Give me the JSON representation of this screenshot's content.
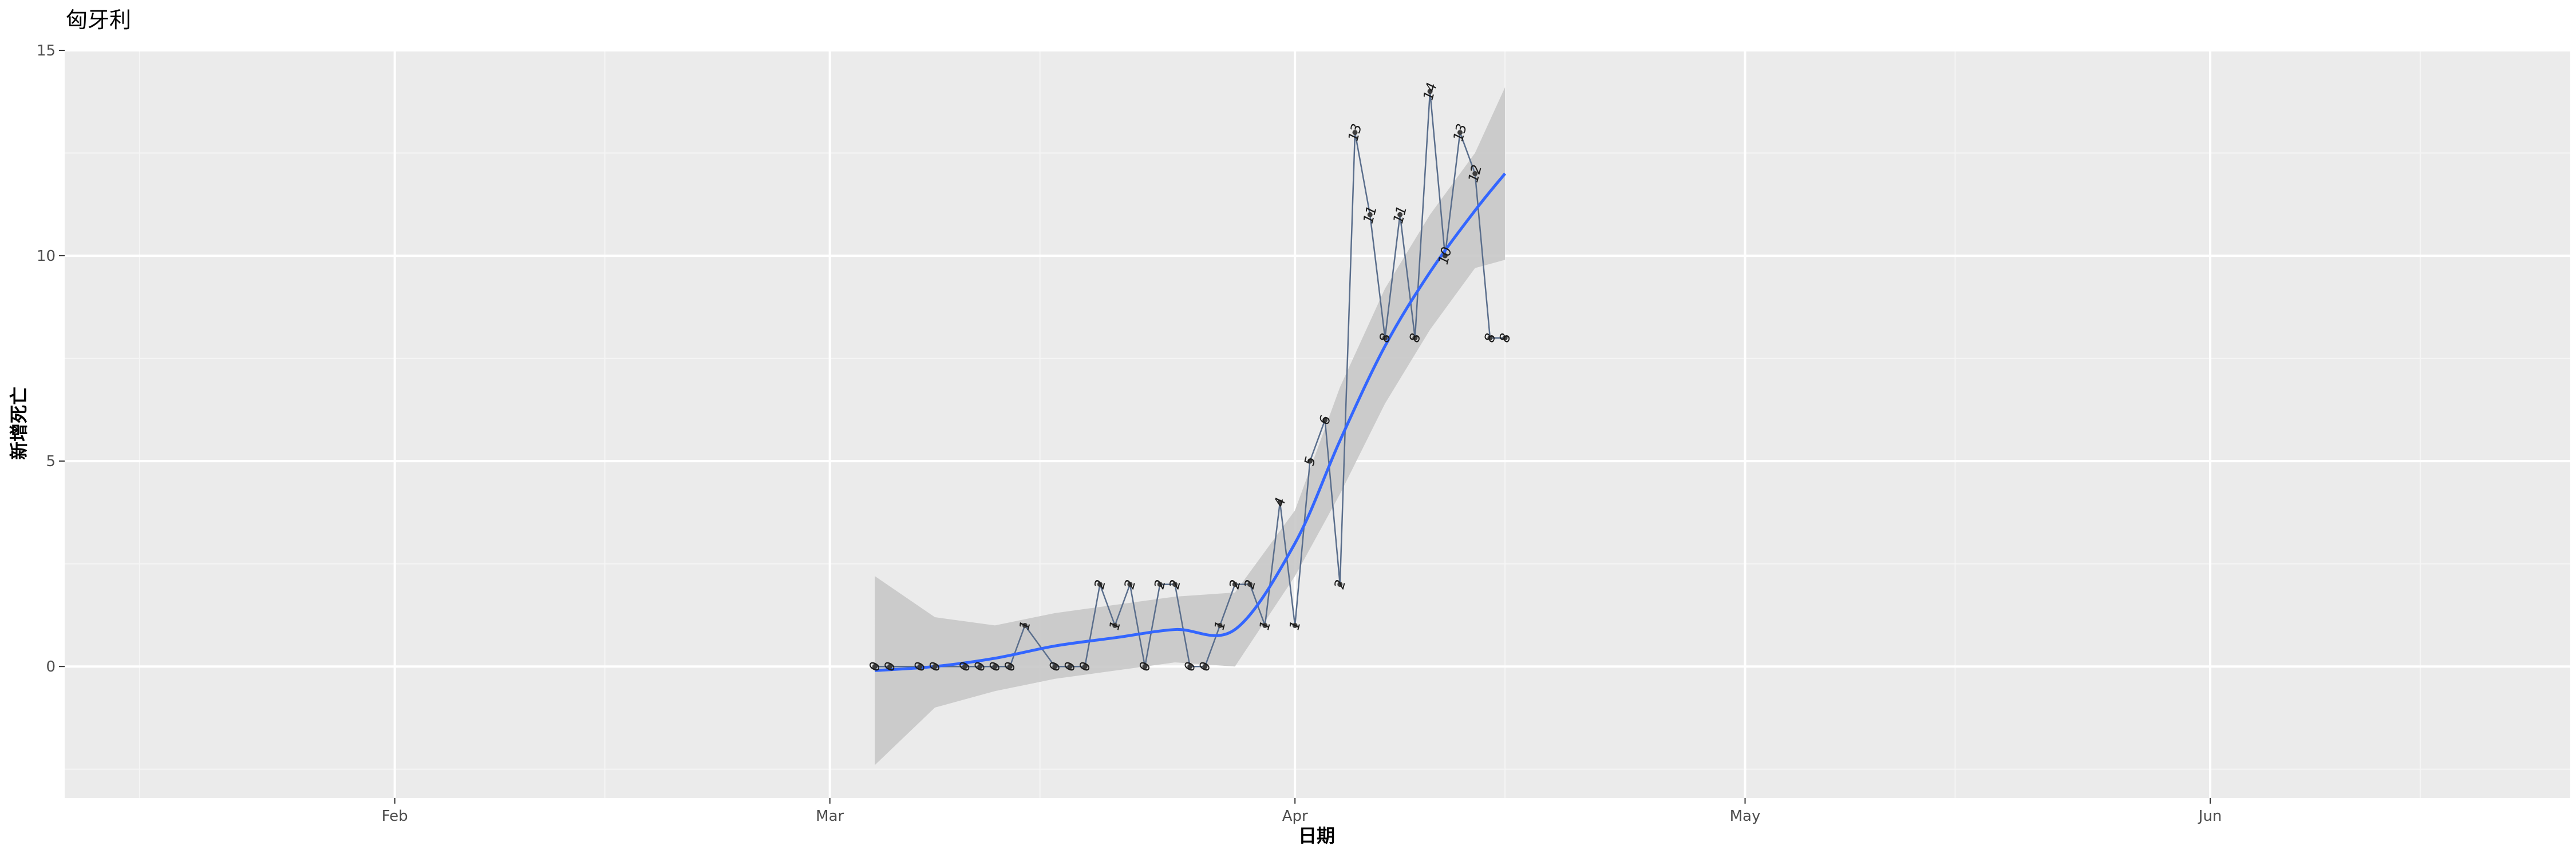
{
  "chart_data": {
    "type": "line",
    "title": "匈牙利",
    "xlabel": "日期",
    "ylabel": "新增死亡",
    "x_tick_labels": [
      "Feb",
      "Mar",
      "Apr",
      "May",
      "Jun"
    ],
    "y_tick_labels": [
      "0",
      "5",
      "10",
      "15"
    ],
    "y_ticks": [
      0,
      5,
      10,
      15
    ],
    "ylim": [
      -3.2,
      15
    ],
    "xlim": [
      "2020-01-10",
      "2020-06-25"
    ],
    "x_ticks": [
      "2020-02-01",
      "2020-03-01",
      "2020-04-01",
      "2020-05-01",
      "2020-06-01"
    ],
    "x_minor_ticks": [
      "2020-01-15",
      "2020-02-15",
      "2020-03-15",
      "2020-04-15",
      "2020-05-15",
      "2020-06-15"
    ],
    "y_minor_ticks": [
      -2.5,
      2.5,
      7.5,
      12.5
    ],
    "grid": true,
    "series": [
      {
        "color": "#5a6e8c",
        "x": [
          "2020-03-04",
          "2020-03-05",
          "2020-03-07",
          "2020-03-08",
          "2020-03-10",
          "2020-03-11",
          "2020-03-12",
          "2020-03-13",
          "2020-03-14",
          "2020-03-16",
          "2020-03-17",
          "2020-03-18",
          "2020-03-19",
          "2020-03-20",
          "2020-03-21",
          "2020-03-22",
          "2020-03-23",
          "2020-03-24",
          "2020-03-25",
          "2020-03-26",
          "2020-03-27",
          "2020-03-28",
          "2020-03-29",
          "2020-03-30",
          "2020-03-31",
          "2020-04-01",
          "2020-04-02",
          "2020-04-03",
          "2020-04-04",
          "2020-04-05",
          "2020-04-06",
          "2020-04-07",
          "2020-04-08",
          "2020-04-09",
          "2020-04-10",
          "2020-04-11",
          "2020-04-12",
          "2020-04-13",
          "2020-04-14",
          "2020-04-15"
        ],
        "values": [
          0,
          0,
          0,
          0,
          0,
          0,
          0,
          0,
          1,
          0,
          0,
          0,
          2,
          1,
          2,
          0,
          2,
          2,
          0,
          0,
          1,
          2,
          2,
          1,
          4,
          1,
          5,
          6,
          2,
          13,
          11,
          8,
          11,
          8,
          14,
          10,
          13,
          12,
          8,
          8
        ]
      }
    ],
    "smooth": {
      "color": "#3366ff",
      "band_color": "#c8c8c8",
      "x": [
        "2020-03-04",
        "2020-03-08",
        "2020-03-12",
        "2020-03-16",
        "2020-03-20",
        "2020-03-24",
        "2020-03-28",
        "2020-04-01",
        "2020-04-04",
        "2020-04-07",
        "2020-04-10",
        "2020-04-13",
        "2020-04-15"
      ],
      "fit": [
        -0.1,
        0.0,
        0.2,
        0.5,
        0.7,
        0.9,
        0.9,
        3.0,
        5.5,
        7.8,
        9.6,
        11.1,
        12.0
      ],
      "lower": [
        -2.4,
        -1.0,
        -0.6,
        -0.3,
        -0.1,
        0.1,
        0.0,
        2.2,
        4.2,
        6.4,
        8.2,
        9.7,
        9.9
      ],
      "upper": [
        2.2,
        1.2,
        1.0,
        1.3,
        1.5,
        1.7,
        1.8,
        3.8,
        6.8,
        9.2,
        11.0,
        12.5,
        14.1
      ]
    }
  }
}
